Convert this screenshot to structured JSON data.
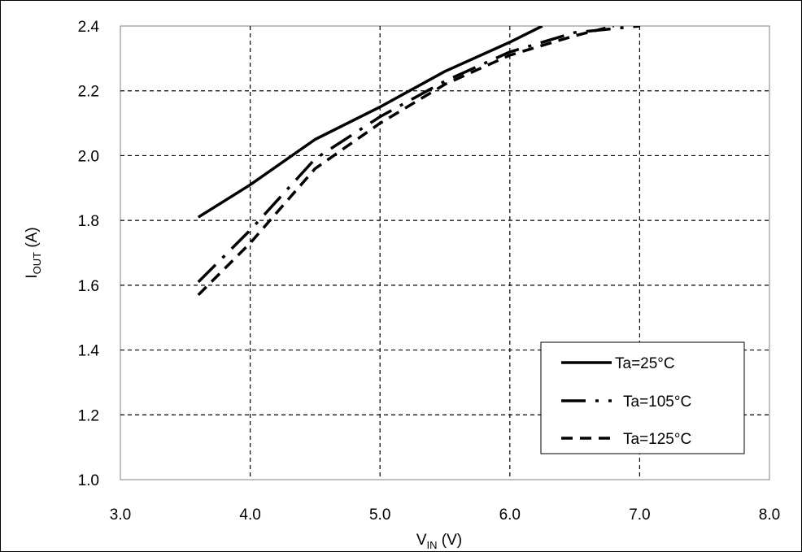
{
  "chart_data": {
    "type": "line",
    "xlabel": {
      "main": "V",
      "sub": "IN",
      "unit": " (V)"
    },
    "ylabel": {
      "main": "I",
      "sub": "OUT",
      "unit": " (A)"
    },
    "xlim": [
      3.0,
      8.0
    ],
    "ylim": [
      1.0,
      2.4
    ],
    "x_ticks": [
      "3.0",
      "4.0",
      "5.0",
      "6.0",
      "7.0",
      "8.0"
    ],
    "y_ticks": [
      "1.0",
      "1.2",
      "1.4",
      "1.6",
      "1.8",
      "2.0",
      "2.2",
      "2.4"
    ],
    "grid": true,
    "legend_position": "bottom-right",
    "series": [
      {
        "name": "Ta=25°C",
        "style": "solid",
        "color": "#000000",
        "points": [
          [
            3.6,
            1.81
          ],
          [
            4.0,
            1.91
          ],
          [
            4.5,
            2.05
          ],
          [
            5.0,
            2.15
          ],
          [
            5.5,
            2.26
          ],
          [
            6.0,
            2.35
          ],
          [
            6.25,
            2.4
          ]
        ]
      },
      {
        "name": "Ta=105°C",
        "style": "dash-dot",
        "color": "#000000",
        "points": [
          [
            3.6,
            1.61
          ],
          [
            4.0,
            1.77
          ],
          [
            4.5,
            1.99
          ],
          [
            5.0,
            2.12
          ],
          [
            5.5,
            2.23
          ],
          [
            6.0,
            2.32
          ],
          [
            6.5,
            2.38
          ],
          [
            7.0,
            2.4
          ]
        ]
      },
      {
        "name": "Ta=125°C",
        "style": "dashed",
        "color": "#000000",
        "points": [
          [
            3.6,
            1.57
          ],
          [
            4.0,
            1.73
          ],
          [
            4.5,
            1.96
          ],
          [
            5.0,
            2.1
          ],
          [
            5.5,
            2.22
          ],
          [
            6.0,
            2.31
          ],
          [
            6.5,
            2.37
          ],
          [
            6.8,
            2.4
          ]
        ]
      }
    ]
  }
}
